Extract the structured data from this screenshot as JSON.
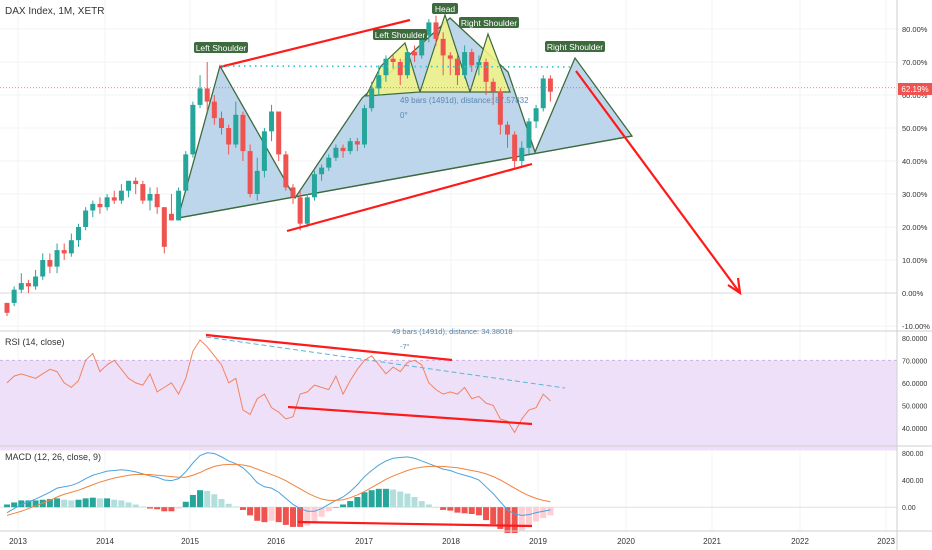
{
  "colors": {
    "up": "#26a69a",
    "down": "#ef5350",
    "trend": "#ff1a1a",
    "pattern_fill": "#b3cfe8",
    "shoulder_fill": "#eef38a",
    "outline": "#3d6b3d",
    "rsi_band": "#efe0fa",
    "rsi_line": "#f2835f",
    "macd_line": "#4aa3df",
    "signal_line": "#f2833d",
    "price_line": "#ff4d4d",
    "label_bg": "#3d6b3d"
  },
  "header": {
    "title": "DAX Index, 1M, XETR",
    "rsi_title": "RSI (14, close)",
    "macd_title": "MACD (12, 26, close, 9)"
  },
  "pattern_labels": {
    "left_shoulder_1": "Left Shoulder",
    "left_shoulder_2": "Left Shoulder",
    "head": "Head",
    "right_shoulder_1": "Right Shoulder",
    "right_shoulder_2": "Right Shoulder"
  },
  "annotations": {
    "main_measure": "49 bars (1491d), distance: 87.57832",
    "main_angle": "0°",
    "rsi_measure": "49 bars (1491d), distance: 34.38018",
    "rsi_angle": "-7°",
    "current_price": "62.19%"
  },
  "chart_data": [
    {
      "type": "candlestick",
      "title": "DAX Index, 1M, XETR",
      "y_axis": "percent",
      "yticks": [
        "80.00%",
        "70.00%",
        "60.00%",
        "50.00%",
        "40.00%",
        "30.00%",
        "20.00%",
        "10.00%",
        "0.00%",
        "-10.00%"
      ],
      "ylim": [
        -10,
        90
      ],
      "xticks": [
        "2013",
        "2014",
        "2015",
        "2016",
        "2017",
        "2018",
        "2019",
        "2020",
        "2021",
        "2022",
        "2023"
      ],
      "last_value": 62.19,
      "candles": [
        [
          -3,
          -6,
          -3,
          -7,
          -1
        ],
        [
          -3,
          1,
          2,
          -4,
          5
        ],
        [
          1,
          3,
          6,
          0,
          6
        ],
        [
          3,
          2,
          4,
          0,
          6
        ],
        [
          2,
          5,
          7,
          1,
          7
        ],
        [
          5,
          10,
          12,
          4,
          12
        ],
        [
          10,
          8,
          12,
          6,
          12
        ],
        [
          8,
          13,
          15,
          6,
          15
        ],
        [
          13,
          12,
          15,
          10,
          15
        ],
        [
          12,
          16,
          18,
          11,
          18
        ],
        [
          16,
          20,
          21,
          14,
          21
        ],
        [
          20,
          25,
          26,
          19,
          26
        ],
        [
          25,
          27,
          28,
          23,
          28
        ],
        [
          27,
          26,
          29,
          24,
          29
        ],
        [
          26,
          29,
          30,
          25,
          30
        ],
        [
          29,
          28,
          31,
          27,
          31
        ],
        [
          28,
          31,
          33,
          27,
          33
        ],
        [
          31,
          34,
          34,
          29,
          34
        ],
        [
          34,
          33,
          35,
          30,
          35
        ],
        [
          33,
          28,
          34,
          27,
          34
        ],
        [
          28,
          30,
          32,
          25,
          32
        ],
        [
          30,
          26,
          32,
          24,
          32
        ],
        [
          26,
          14,
          26,
          12,
          26
        ],
        [
          24,
          22,
          30,
          22,
          30
        ],
        [
          22,
          31,
          32,
          22,
          32
        ],
        [
          31,
          42,
          43,
          31,
          43
        ],
        [
          42,
          57,
          58,
          41,
          58
        ],
        [
          57,
          62,
          66,
          56,
          66
        ],
        [
          62,
          58,
          70,
          55,
          70
        ],
        [
          58,
          53,
          60,
          51,
          60
        ],
        [
          53,
          50,
          55,
          48,
          55
        ],
        [
          50,
          45,
          51,
          42,
          51
        ],
        [
          45,
          54,
          58,
          44,
          58
        ],
        [
          54,
          43,
          55,
          40,
          55
        ],
        [
          43,
          30,
          45,
          29,
          45
        ],
        [
          30,
          37,
          41,
          28,
          41
        ],
        [
          37,
          49,
          50,
          35,
          50
        ],
        [
          49,
          55,
          57,
          46,
          57
        ],
        [
          55,
          42,
          55,
          40,
          55
        ],
        [
          42,
          32,
          43,
          31,
          43
        ],
        [
          32,
          29,
          33,
          27,
          33
        ],
        [
          29,
          21,
          31,
          19,
          31
        ],
        [
          21,
          29,
          30,
          20,
          30
        ],
        [
          29,
          36,
          37,
          28,
          37
        ],
        [
          36,
          38,
          39,
          34,
          39
        ],
        [
          38,
          41,
          42,
          37,
          42
        ],
        [
          41,
          44,
          45,
          40,
          45
        ],
        [
          44,
          43,
          45,
          41,
          45
        ],
        [
          43,
          46,
          47,
          42,
          47
        ],
        [
          46,
          45,
          47,
          43,
          47
        ],
        [
          45,
          56,
          57,
          44,
          57
        ],
        [
          56,
          62,
          64,
          55,
          64
        ],
        [
          62,
          66,
          69,
          60,
          69
        ],
        [
          66,
          71,
          72,
          64,
          72
        ],
        [
          71,
          70,
          72,
          68,
          72
        ],
        [
          70,
          66,
          71,
          63,
          71
        ],
        [
          66,
          73,
          74,
          65,
          74
        ],
        [
          73,
          72,
          75,
          70,
          75
        ],
        [
          72,
          78,
          80,
          71,
          80
        ],
        [
          78,
          82,
          83,
          76,
          83
        ],
        [
          82,
          77,
          84,
          75,
          84
        ],
        [
          77,
          72,
          79,
          66,
          79
        ],
        [
          72,
          71,
          73,
          66,
          73
        ],
        [
          71,
          66,
          72,
          63,
          72
        ],
        [
          66,
          73,
          75,
          65,
          75
        ],
        [
          73,
          69,
          74,
          67,
          74
        ],
        [
          69,
          70,
          72,
          66,
          72
        ],
        [
          70,
          64,
          71,
          60,
          71
        ],
        [
          64,
          61,
          65,
          57,
          65
        ],
        [
          61,
          51,
          62,
          48,
          62
        ],
        [
          51,
          48,
          52,
          44,
          52
        ],
        [
          48,
          40,
          49,
          38,
          49
        ],
        [
          40,
          44,
          46,
          38,
          46
        ],
        [
          44,
          52,
          53,
          42,
          53
        ],
        [
          52,
          56,
          57,
          50,
          57
        ],
        [
          56,
          65,
          66,
          55,
          66
        ],
        [
          65,
          61,
          66,
          58,
          66
        ]
      ]
    },
    {
      "type": "line",
      "title": "RSI (14, close)",
      "yticks": [
        "80.0000",
        "70.0000",
        "60.0000",
        "50.0000",
        "40.0000"
      ],
      "ylim": [
        32,
        83
      ],
      "band": [
        30,
        70
      ],
      "values": [
        60,
        63,
        64,
        63,
        62,
        64,
        66,
        65,
        60,
        58,
        61,
        70,
        73,
        65,
        68,
        70,
        66,
        62,
        60,
        59,
        64,
        56,
        58,
        60,
        55,
        62,
        74,
        79,
        76,
        72,
        68,
        60,
        62,
        48,
        46,
        53,
        55,
        49,
        47,
        44,
        45,
        55,
        56,
        59,
        58,
        57,
        63,
        55,
        61,
        66,
        70,
        72,
        68,
        64,
        67,
        65,
        69,
        70,
        68,
        60,
        57,
        55,
        56,
        55,
        58,
        53,
        54,
        51,
        50,
        44,
        43,
        38,
        44,
        48,
        49,
        55,
        52
      ]
    },
    {
      "type": "line",
      "title": "MACD (12, 26, close, 9)",
      "yticks": [
        "800.00",
        "400.00",
        "0.00"
      ],
      "ylim": [
        -350,
        900
      ],
      "series": [
        {
          "values": [
            -80,
            -20,
            40,
            80,
            120,
            170,
            220,
            280,
            300,
            320,
            360,
            420,
            470,
            500,
            530,
            540,
            550,
            540,
            520,
            490,
            460,
            440,
            400,
            390,
            420,
            520,
            650,
            760,
            800,
            790,
            740,
            680,
            640,
            580,
            480,
            360,
            300,
            280,
            220,
            130,
            40,
            -20,
            -60,
            -60,
            -20,
            40,
            100,
            150,
            230,
            330,
            450,
            540,
            620,
            680,
            720,
            730,
            740,
            720,
            680,
            640,
            600,
            560,
            540,
            500,
            470,
            440,
            400,
            300,
            200,
            80,
            -40,
            -100,
            -120,
            -110,
            -80,
            -60,
            -40
          ]
        },
        {
          "values": [
            -120,
            -90,
            -60,
            -20,
            20,
            60,
            100,
            150,
            190,
            220,
            250,
            290,
            330,
            370,
            400,
            430,
            450,
            470,
            480,
            480,
            480,
            470,
            460,
            450,
            440,
            440,
            470,
            510,
            560,
            600,
            620,
            630,
            630,
            620,
            600,
            560,
            520,
            480,
            440,
            390,
            330,
            270,
            210,
            160,
            120,
            100,
            100,
            110,
            140,
            180,
            230,
            290,
            350,
            410,
            460,
            500,
            540,
            570,
            590,
            600,
            600,
            600,
            590,
            580,
            560,
            540,
            520,
            490,
            450,
            400,
            340,
            280,
            220,
            170,
            130,
            100,
            80
          ]
        }
      ],
      "histogram": [
        40,
        70,
        100,
        100,
        100,
        110,
        120,
        130,
        110,
        100,
        110,
        130,
        140,
        130,
        130,
        110,
        100,
        70,
        40,
        10,
        -20,
        -30,
        -60,
        -60,
        -20,
        80,
        180,
        250,
        240,
        190,
        120,
        50,
        10,
        -40,
        -120,
        -200,
        -220,
        -200,
        -220,
        -260,
        -290,
        -290,
        -270,
        -220,
        -140,
        -60,
        0,
        40,
        90,
        150,
        220,
        250,
        270,
        270,
        260,
        230,
        200,
        150,
        90,
        40,
        0,
        -40,
        -50,
        -80,
        -90,
        -100,
        -120,
        -190,
        -250,
        -320,
        -380,
        -380,
        -340,
        -280,
        -210,
        -160,
        -120
      ]
    }
  ]
}
